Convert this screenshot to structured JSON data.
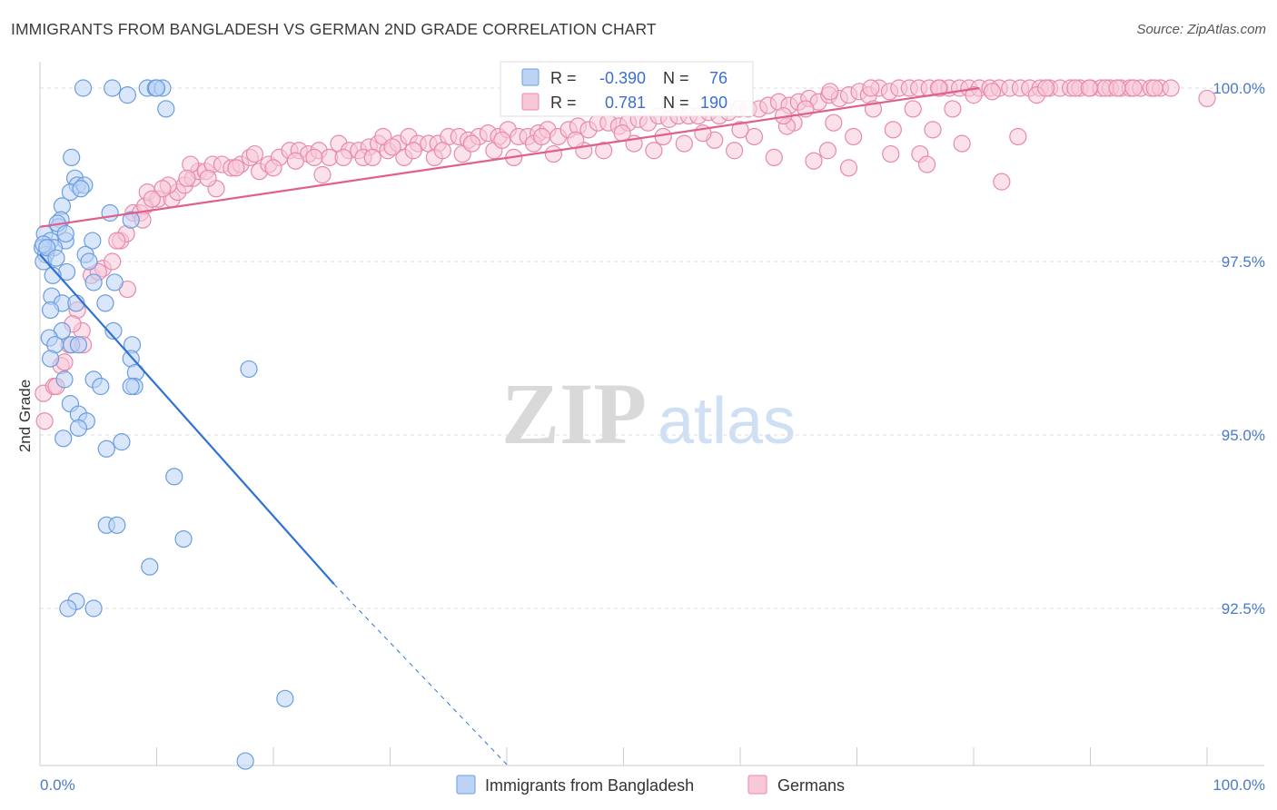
{
  "title": "IMMIGRANTS FROM BANGLADESH VS GERMAN 2ND GRADE CORRELATION CHART",
  "source": "Source: ZipAtlas.com",
  "watermark": {
    "zip": "ZIP",
    "atlas": "atlas"
  },
  "chart_data": {
    "type": "scatter",
    "ylabel": "2nd Grade",
    "xlim": [
      0,
      100
    ],
    "ylim": [
      90.25,
      100.4
    ],
    "y_ticks": [
      {
        "value": 100.0,
        "label": "100.0%"
      },
      {
        "value": 97.5,
        "label": "97.5%"
      },
      {
        "value": 95.0,
        "label": "95.0%"
      },
      {
        "value": 92.5,
        "label": "92.5%"
      }
    ],
    "x_tick_labels": {
      "min": "0.0%",
      "max": "100.0%"
    },
    "grid": "horizontal dashed",
    "legend_placement": "bottom-center",
    "stats_box": {
      "r_label": "R =",
      "n_label": "N =",
      "rows": [
        {
          "r": "-0.390",
          "n": "76"
        },
        {
          "r": "0.781",
          "n": "190"
        }
      ]
    },
    "series": [
      {
        "name": "Immigrants from Bangladesh",
        "color": "#6a9de0",
        "fill": "#bcd3f5",
        "trend_color": "#2f72d4",
        "trend": {
          "x": [
            0,
            25.2
          ],
          "y": [
            97.6,
            92.85
          ]
        },
        "trend_dashed": {
          "x": [
            25.2,
            40.0
          ],
          "y": [
            92.85,
            90.25
          ]
        },
        "points": [
          [
            3.7,
            100
          ],
          [
            6.2,
            100
          ],
          [
            9.2,
            100
          ],
          [
            9.9,
            100
          ],
          [
            7.5,
            99.9
          ],
          [
            10.5,
            100
          ],
          [
            10.0,
            100
          ],
          [
            10.8,
            99.7
          ],
          [
            2.7,
            99.0
          ],
          [
            3.0,
            98.7
          ],
          [
            3.2,
            98.6
          ],
          [
            2.6,
            98.5
          ],
          [
            3.8,
            98.6
          ],
          [
            3.5,
            98.55
          ],
          [
            1.9,
            98.3
          ],
          [
            1.8,
            98.1
          ],
          [
            6.0,
            98.2
          ],
          [
            7.8,
            98.1
          ],
          [
            1.6,
            98.0
          ],
          [
            0.4,
            97.9
          ],
          [
            2.2,
            97.8
          ],
          [
            4.5,
            97.8
          ],
          [
            0.9,
            97.8
          ],
          [
            1.2,
            97.7
          ],
          [
            0.2,
            97.7
          ],
          [
            0.5,
            97.6
          ],
          [
            3.9,
            97.6
          ],
          [
            0.3,
            97.5
          ],
          [
            2.3,
            97.35
          ],
          [
            1.1,
            97.3
          ],
          [
            4.6,
            97.2
          ],
          [
            6.4,
            97.2
          ],
          [
            1.0,
            97.0
          ],
          [
            1.9,
            96.9
          ],
          [
            0.9,
            96.8
          ],
          [
            3.1,
            96.9
          ],
          [
            5.6,
            96.9
          ],
          [
            1.9,
            96.5
          ],
          [
            6.3,
            96.5
          ],
          [
            0.8,
            96.4
          ],
          [
            2.7,
            96.3
          ],
          [
            3.3,
            96.3
          ],
          [
            1.3,
            96.3
          ],
          [
            7.9,
            96.3
          ],
          [
            7.8,
            96.1
          ],
          [
            0.9,
            96.1
          ],
          [
            8.2,
            95.9
          ],
          [
            17.9,
            95.95
          ],
          [
            4.6,
            95.8
          ],
          [
            2.1,
            95.8
          ],
          [
            5.2,
            95.7
          ],
          [
            8.1,
            95.7
          ],
          [
            7.8,
            95.7
          ],
          [
            2.6,
            95.45
          ],
          [
            3.3,
            95.3
          ],
          [
            4.0,
            95.2
          ],
          [
            3.3,
            95.1
          ],
          [
            2.0,
            94.95
          ],
          [
            7.0,
            94.9
          ],
          [
            5.7,
            94.8
          ],
          [
            11.5,
            94.4
          ],
          [
            5.7,
            93.7
          ],
          [
            6.6,
            93.7
          ],
          [
            12.3,
            93.5
          ],
          [
            9.4,
            93.1
          ],
          [
            3.1,
            92.6
          ],
          [
            2.4,
            92.5
          ],
          [
            4.6,
            92.5
          ],
          [
            21.0,
            91.2
          ],
          [
            17.6,
            90.3
          ],
          [
            0.3,
            97.75
          ],
          [
            0.6,
            97.7
          ],
          [
            1.5,
            98.05
          ],
          [
            2.2,
            97.9
          ],
          [
            4.2,
            97.5
          ],
          [
            1.4,
            97.55
          ]
        ]
      },
      {
        "name": "Germans",
        "color": "#e88aa8",
        "fill": "#f8c8d8",
        "trend_color": "#e0608a",
        "trend": {
          "x": [
            0,
            80.5
          ],
          "y": [
            98.0,
            100.0
          ]
        },
        "points": [
          [
            0.3,
            95.6
          ],
          [
            0.4,
            95.2
          ],
          [
            1.2,
            95.7
          ],
          [
            1.8,
            96.0
          ],
          [
            2.5,
            96.3
          ],
          [
            3.2,
            96.8
          ],
          [
            3.6,
            96.5
          ],
          [
            2.8,
            96.6
          ],
          [
            4.4,
            97.3
          ],
          [
            5.4,
            97.4
          ],
          [
            6.2,
            97.5
          ],
          [
            6.9,
            97.8
          ],
          [
            7.4,
            97.9
          ],
          [
            8.0,
            98.2
          ],
          [
            8.6,
            98.2
          ],
          [
            9.0,
            98.3
          ],
          [
            9.2,
            98.5
          ],
          [
            10.1,
            98.4
          ],
          [
            11.3,
            98.4
          ],
          [
            11.8,
            98.5
          ],
          [
            12.4,
            98.6
          ],
          [
            13.1,
            98.7
          ],
          [
            13.6,
            98.8
          ],
          [
            14.2,
            98.8
          ],
          [
            14.8,
            98.9
          ],
          [
            15.6,
            98.9
          ],
          [
            16.4,
            98.85
          ],
          [
            17.2,
            98.9
          ],
          [
            18.0,
            99.0
          ],
          [
            18.8,
            98.8
          ],
          [
            19.6,
            98.9
          ],
          [
            20.5,
            99.0
          ],
          [
            21.4,
            99.1
          ],
          [
            22.2,
            99.1
          ],
          [
            23.0,
            99.05
          ],
          [
            23.9,
            99.1
          ],
          [
            24.8,
            99.0
          ],
          [
            25.6,
            99.2
          ],
          [
            26.5,
            99.1
          ],
          [
            27.3,
            99.1
          ],
          [
            28.2,
            99.15
          ],
          [
            29.0,
            99.2
          ],
          [
            29.8,
            99.1
          ],
          [
            30.7,
            99.2
          ],
          [
            31.6,
            99.3
          ],
          [
            32.4,
            99.2
          ],
          [
            33.3,
            99.2
          ],
          [
            34.1,
            99.2
          ],
          [
            35.0,
            99.3
          ],
          [
            35.9,
            99.3
          ],
          [
            36.7,
            99.25
          ],
          [
            37.6,
            99.3
          ],
          [
            38.4,
            99.35
          ],
          [
            39.3,
            99.3
          ],
          [
            40.1,
            99.4
          ],
          [
            41.0,
            99.3
          ],
          [
            41.8,
            99.3
          ],
          [
            42.7,
            99.35
          ],
          [
            43.5,
            99.4
          ],
          [
            44.4,
            99.3
          ],
          [
            45.3,
            99.4
          ],
          [
            46.1,
            99.45
          ],
          [
            47.0,
            99.4
          ],
          [
            47.8,
            99.5
          ],
          [
            48.7,
            99.5
          ],
          [
            49.6,
            99.45
          ],
          [
            50.4,
            99.5
          ],
          [
            51.3,
            99.55
          ],
          [
            52.1,
            99.5
          ],
          [
            53.0,
            99.6
          ],
          [
            53.9,
            99.55
          ],
          [
            54.7,
            99.6
          ],
          [
            55.6,
            99.6
          ],
          [
            56.4,
            99.6
          ],
          [
            57.3,
            99.65
          ],
          [
            58.2,
            99.6
          ],
          [
            59.0,
            99.65
          ],
          [
            59.9,
            99.7
          ],
          [
            60.7,
            99.7
          ],
          [
            61.6,
            99.7
          ],
          [
            62.4,
            99.75
          ],
          [
            63.3,
            99.8
          ],
          [
            64.2,
            99.75
          ],
          [
            65.0,
            99.8
          ],
          [
            65.9,
            99.85
          ],
          [
            66.7,
            99.8
          ],
          [
            67.6,
            99.9
          ],
          [
            68.5,
            99.85
          ],
          [
            69.3,
            99.9
          ],
          [
            70.2,
            99.95
          ],
          [
            71.0,
            99.9
          ],
          [
            71.9,
            100
          ],
          [
            72.8,
            99.95
          ],
          [
            73.6,
            100
          ],
          [
            74.5,
            100
          ],
          [
            75.3,
            100
          ],
          [
            76.2,
            100
          ],
          [
            77.1,
            100
          ],
          [
            77.9,
            100
          ],
          [
            78.8,
            100
          ],
          [
            79.6,
            100
          ],
          [
            80.5,
            100
          ],
          [
            81.4,
            100
          ],
          [
            82.2,
            100
          ],
          [
            83.1,
            100
          ],
          [
            84.0,
            100
          ],
          [
            84.8,
            100
          ],
          [
            85.7,
            100
          ],
          [
            86.5,
            100
          ],
          [
            87.4,
            100
          ],
          [
            88.3,
            100
          ],
          [
            89.1,
            100
          ],
          [
            90.0,
            100
          ],
          [
            90.9,
            100
          ],
          [
            91.7,
            100
          ],
          [
            92.6,
            100
          ],
          [
            93.4,
            100
          ],
          [
            94.3,
            100
          ],
          [
            95.2,
            100
          ],
          [
            96.0,
            100
          ],
          [
            96.9,
            100
          ],
          [
            100.0,
            99.85
          ],
          [
            7.5,
            97.1
          ],
          [
            8.8,
            98.1
          ],
          [
            12.9,
            98.9
          ],
          [
            15.1,
            98.55
          ],
          [
            18.4,
            99.05
          ],
          [
            21.9,
            98.95
          ],
          [
            24.2,
            98.75
          ],
          [
            27.7,
            99.0
          ],
          [
            29.4,
            99.3
          ],
          [
            31.2,
            99.0
          ],
          [
            33.8,
            99.0
          ],
          [
            36.2,
            99.05
          ],
          [
            38.9,
            99.1
          ],
          [
            40.6,
            99.0
          ],
          [
            42.3,
            99.2
          ],
          [
            44.0,
            99.05
          ],
          [
            46.6,
            99.1
          ],
          [
            48.3,
            99.1
          ],
          [
            50.9,
            99.2
          ],
          [
            52.6,
            99.1
          ],
          [
            55.2,
            99.2
          ],
          [
            57.8,
            99.25
          ],
          [
            59.5,
            99.1
          ],
          [
            61.2,
            99.3
          ],
          [
            62.9,
            99.0
          ],
          [
            64.6,
            99.5
          ],
          [
            66.3,
            98.95
          ],
          [
            68.0,
            99.5
          ],
          [
            69.7,
            99.3
          ],
          [
            71.4,
            99.7
          ],
          [
            73.1,
            99.4
          ],
          [
            74.8,
            99.7
          ],
          [
            76.5,
            99.4
          ],
          [
            78.2,
            99.7
          ],
          [
            80.0,
            99.9
          ],
          [
            81.6,
            99.95
          ],
          [
            82.4,
            98.65
          ],
          [
            83.8,
            99.3
          ],
          [
            85.4,
            99.9
          ],
          [
            86.2,
            100
          ],
          [
            88.7,
            100
          ],
          [
            89.9,
            100
          ],
          [
            91.3,
            100
          ],
          [
            92.3,
            100
          ],
          [
            93.7,
            100
          ],
          [
            95.5,
            100
          ],
          [
            72.9,
            99.05
          ],
          [
            75.4,
            99.05
          ],
          [
            76.0,
            98.9
          ],
          [
            69.3,
            98.85
          ],
          [
            67.5,
            99.1
          ],
          [
            64.0,
            99.45
          ],
          [
            60.0,
            99.4
          ],
          [
            56.8,
            99.35
          ],
          [
            53.4,
            99.3
          ],
          [
            49.9,
            99.35
          ],
          [
            45.9,
            99.25
          ],
          [
            43.0,
            99.3
          ],
          [
            39.6,
            99.25
          ],
          [
            37.0,
            99.2
          ],
          [
            34.5,
            99.1
          ],
          [
            32.0,
            99.1
          ],
          [
            30.2,
            99.15
          ],
          [
            28.5,
            99.0
          ],
          [
            26.0,
            99.0
          ],
          [
            23.5,
            99.0
          ],
          [
            20.0,
            98.85
          ],
          [
            16.8,
            98.85
          ],
          [
            14.4,
            98.7
          ],
          [
            12.6,
            98.7
          ],
          [
            11.0,
            98.6
          ],
          [
            10.5,
            98.55
          ],
          [
            9.6,
            98.4
          ],
          [
            6.6,
            97.8
          ],
          [
            5.0,
            97.35
          ],
          [
            3.7,
            96.3
          ],
          [
            2.1,
            96.05
          ],
          [
            1.4,
            95.7
          ],
          [
            79.0,
            99.2
          ],
          [
            77.0,
            100
          ],
          [
            71.2,
            100
          ],
          [
            67.7,
            99.95
          ],
          [
            65.6,
            99.7
          ],
          [
            63.7,
            99.6
          ]
        ]
      }
    ]
  }
}
